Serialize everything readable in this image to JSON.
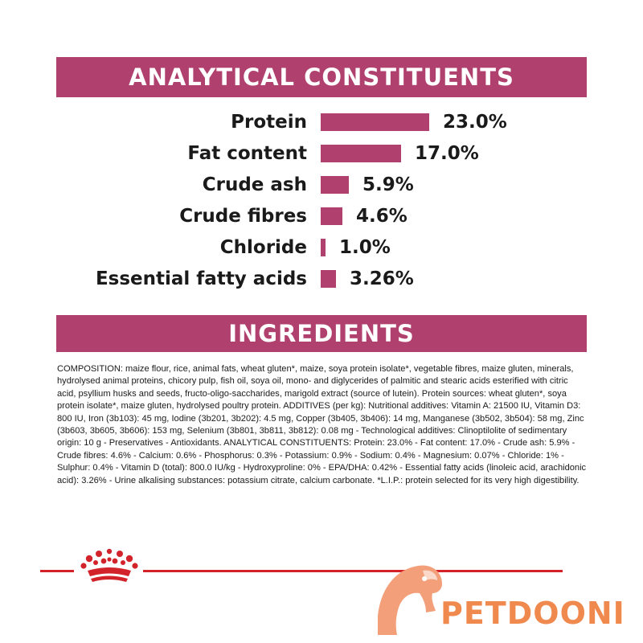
{
  "analytical": {
    "title": "ANALYTICAL CONSTITUENTS",
    "rows": [
      {
        "label": "Protein",
        "value": "23.0%",
        "amount": 23.0
      },
      {
        "label": "Fat content",
        "value": "17.0%",
        "amount": 17.0
      },
      {
        "label": "Crude ash",
        "value": "5.9%",
        "amount": 5.9
      },
      {
        "label": "Crude fibres",
        "value": "4.6%",
        "amount": 4.6
      },
      {
        "label": "Chloride",
        "value": "1.0%",
        "amount": 1.0
      },
      {
        "label": "Essential fatty acids",
        "value": "3.26%",
        "amount": 3.26
      }
    ]
  },
  "ingredients": {
    "title": "INGREDIENTS",
    "composition": "COMPOSITION: maize flour, rice, animal fats, wheat gluten*, maize, soya protein isolate*, vegetable fibres, maize gluten, minerals, hydrolysed animal proteins, chicory pulp, fish oil, soya oil, mono- and diglycerides of palmitic and stearic acids esterified with citric acid, psyllium husks and seeds, fructo-oligo-saccharides, marigold extract (source of lutein). Protein sources: wheat gluten*, soya protein isolate*, maize gluten, hydrolysed poultry protein. ADDITIVES (per kg): Nutritional additives: Vitamin A: 21500 IU, Vitamin D3: 800 IU, Iron (3b103): 45 mg, Iodine (3b201, 3b202): 4.5 mg, Copper (3b405, 3b406): 14 mg, Manganese (3b502, 3b504): 58 mg, Zinc (3b603, 3b605, 3b606): 153 mg, Selenium (3b801, 3b811, 3b812): 0.08 mg - Technological additives: Clinoptilolite of sedimentary origin: 10 g - Preservatives - Antioxidants. ANALYTICAL CONSTITUENTS: Protein: 23.0% - Fat content: 17.0% - Crude ash: 5.9% - Crude fibres: 4.6% - Calcium: 0.6% - Phosphorus: 0.3% - Potassium: 0.9% - Sodium: 0.4% - Magnesium: 0.07% - Chloride: 1% - Sulphur: 0.4% - Vitamin D (total): 800.0 IU/kg - Hydroxyproline: 0% - EPA/DHA: 0.42% - Essential fatty acids (linoleic acid, arachidonic acid): 3.26% - Urine alkalising substances: potassium citrate, calcium carbonate. *L.I.P.: protein selected for its very high digestibility."
  },
  "watermark": {
    "text": "PETDOONI",
    "icon": "parrot-head-icon"
  },
  "colors": {
    "accent": "#b0406e",
    "footer_red": "#d2232a",
    "watermark_orange": "#f0894e"
  },
  "icons": {
    "brand": "crown-icon"
  }
}
